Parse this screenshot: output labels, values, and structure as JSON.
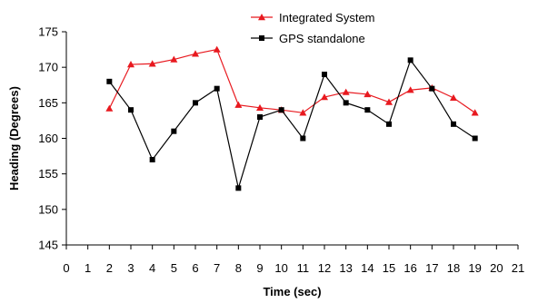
{
  "chart_data": {
    "type": "line",
    "title": "",
    "xlabel": "Time (sec)",
    "ylabel": "Heading (Degrees)",
    "xlim": [
      0,
      21
    ],
    "ylim": [
      145,
      175
    ],
    "xticks": [
      0,
      1,
      2,
      3,
      4,
      5,
      6,
      7,
      8,
      9,
      10,
      11,
      12,
      13,
      14,
      15,
      16,
      17,
      18,
      19,
      20,
      21
    ],
    "yticks": [
      145,
      150,
      155,
      160,
      165,
      170,
      175
    ],
    "grid": false,
    "legend_position": "top-right",
    "series": [
      {
        "name": "Integrated System",
        "color": "#e8191f",
        "marker": "triangle",
        "x": [
          2,
          3,
          4,
          5,
          6,
          7,
          8,
          9,
          10,
          11,
          12,
          13,
          14,
          15,
          16,
          17,
          18,
          19
        ],
        "y": [
          164.2,
          170.4,
          170.5,
          171.1,
          171.9,
          172.5,
          164.7,
          164.3,
          164.0,
          163.6,
          165.8,
          166.5,
          166.2,
          165.1,
          166.8,
          167.1,
          165.7,
          163.6
        ]
      },
      {
        "name": "GPS standalone",
        "color": "#000000",
        "marker": "square",
        "x": [
          2,
          3,
          4,
          5,
          6,
          7,
          8,
          9,
          10,
          11,
          12,
          13,
          14,
          15,
          16,
          17,
          18,
          19
        ],
        "y": [
          168,
          164,
          157,
          161,
          165,
          167,
          153,
          163,
          164,
          160,
          169,
          165,
          164,
          162,
          171,
          167,
          162,
          160
        ]
      }
    ]
  }
}
